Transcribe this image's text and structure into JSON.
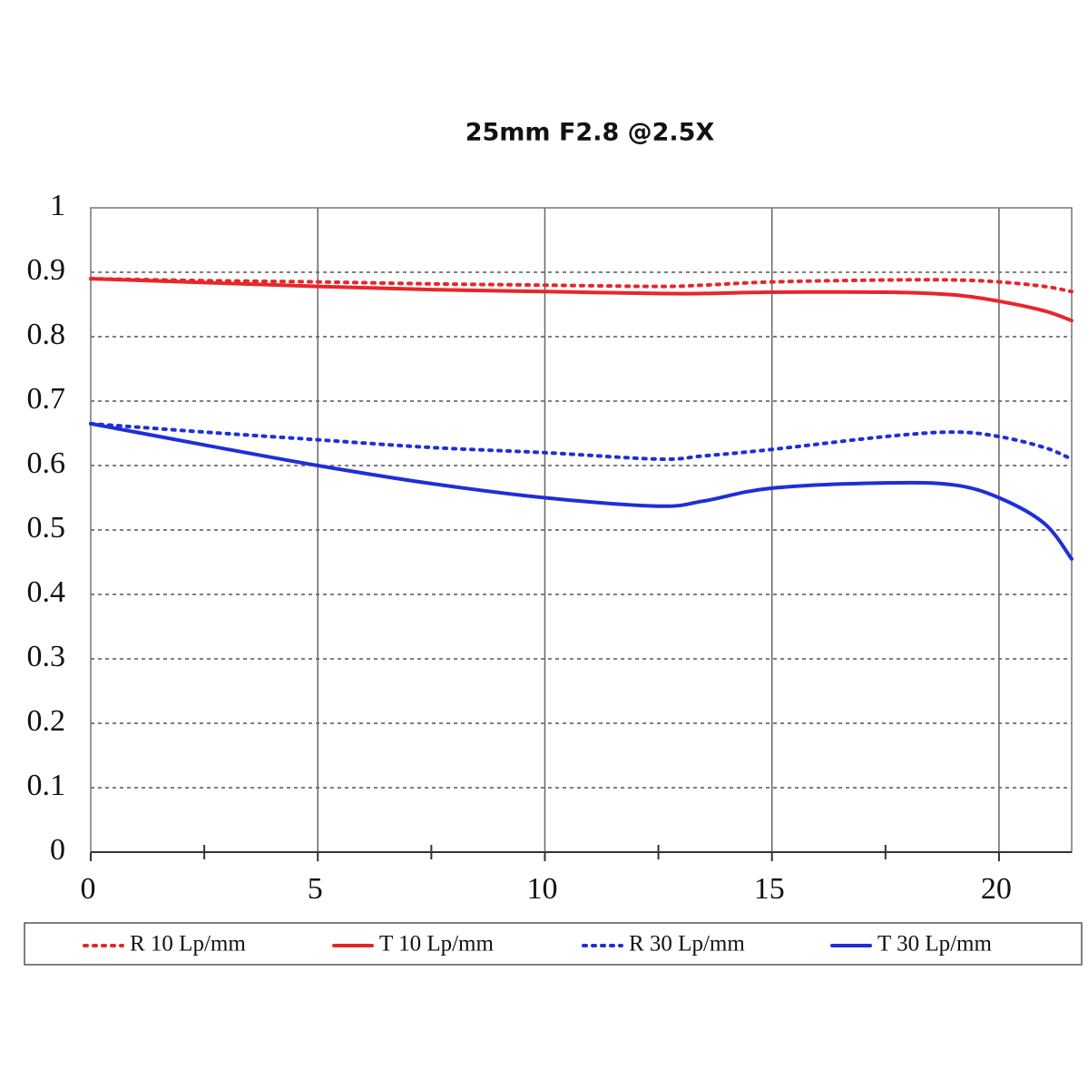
{
  "chart_data": {
    "type": "line",
    "title": "25mm F2.8  @2.5X",
    "x": [
      0,
      2.5,
      5,
      7.5,
      10,
      12.5,
      13.5,
      15,
      17.5,
      19,
      20,
      21,
      21.6
    ],
    "series": [
      {
        "name": "R 10 Lp/mm",
        "color": "#e8262a",
        "style": "dotted",
        "values": [
          0.89,
          0.887,
          0.885,
          0.882,
          0.88,
          0.878,
          0.88,
          0.885,
          0.888,
          0.888,
          0.885,
          0.878,
          0.87
        ]
      },
      {
        "name": "T 10 Lp/mm",
        "color": "#e8262a",
        "style": "solid",
        "values": [
          0.89,
          0.884,
          0.878,
          0.873,
          0.87,
          0.867,
          0.867,
          0.869,
          0.869,
          0.865,
          0.855,
          0.84,
          0.825
        ]
      },
      {
        "name": "R 30 Lp/mm",
        "color": "#1e2fd8",
        "style": "dotted",
        "values": [
          0.665,
          0.652,
          0.64,
          0.628,
          0.62,
          0.61,
          0.615,
          0.625,
          0.645,
          0.652,
          0.645,
          0.628,
          0.61
        ]
      },
      {
        "name": "T 30 Lp/mm",
        "color": "#1e2fd8",
        "style": "solid",
        "values": [
          0.665,
          0.632,
          0.6,
          0.572,
          0.55,
          0.537,
          0.545,
          0.565,
          0.573,
          0.57,
          0.55,
          0.51,
          0.455
        ]
      }
    ],
    "xlim": [
      0,
      21.6
    ],
    "xticks": [
      0,
      5,
      10,
      15,
      20
    ],
    "xminorticks": [
      2.5,
      7.5,
      12.5,
      17.5
    ],
    "ylim": [
      0,
      1
    ],
    "yticks": [
      0,
      0.1,
      0.2,
      0.3,
      0.4,
      0.5,
      0.6,
      0.7,
      0.8,
      0.9,
      1
    ],
    "grid": true,
    "legend": "bottom"
  }
}
